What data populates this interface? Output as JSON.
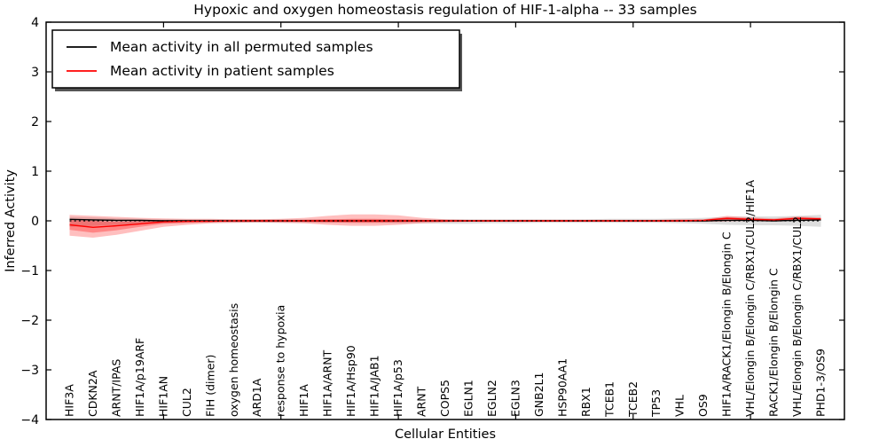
{
  "chart_data": {
    "type": "line",
    "title": "Hypoxic and oxygen homeostasis regulation of HIF-1-alpha -- 33 samples",
    "xlabel": "Cellular Entities",
    "ylabel": "Inferred Activity",
    "xlim": [
      0,
      34
    ],
    "ylim": [
      -4,
      4
    ],
    "xticks_unlabeled": [
      5,
      10,
      15,
      20,
      25,
      30
    ],
    "yticks": [
      4,
      3,
      2,
      1,
      0,
      -1,
      -2,
      -3,
      -4
    ],
    "grid": false,
    "tick_direction": "in",
    "legend_position": "upper left",
    "categories": [
      "HIF3A",
      "CDKN2A",
      "ARNT/IPAS",
      "HIF1A/p19ARF",
      "HIF1AN",
      "CUL2",
      "FIH (dimer)",
      "oxygen homeostasis",
      "ARD1A",
      "response to hypoxia",
      "HIF1A",
      "HIF1A/ARNT",
      "HIF1A/Hsp90",
      "HIF1A/JAB1",
      "HIF1A/p53",
      "ARNT",
      "COPS5",
      "EGLN1",
      "EGLN2",
      "EGLN3",
      "GNB2L1",
      "HSP90AA1",
      "RBX1",
      "TCEB1",
      "TCEB2",
      "TP53",
      "VHL",
      "OS9",
      "HIF1A/RACK1/Elongin B/Elongin C",
      "VHL/Elongin B/Elongin C/RBX1/CUL2/HIF1A",
      "RACK1/Elongin B/Elongin C",
      "VHL/Elongin B/Elongin C/RBX1/CUL2",
      "PHD1-3/OS9"
    ],
    "series": [
      {
        "id": "mean-permuted-line",
        "name": "Mean activity in all permuted samples",
        "color": "#000000",
        "values": [
          0.03,
          0.02,
          0.01,
          0.01,
          0,
          0,
          0,
          0,
          0,
          0,
          0,
          0,
          0,
          0,
          0,
          0,
          0,
          0,
          0,
          0,
          0,
          0,
          0,
          0,
          0,
          0,
          0,
          0,
          0.01,
          0.01,
          0,
          0.01,
          0.02
        ]
      },
      {
        "id": "mean-patient-line",
        "name": "Mean activity in patient samples",
        "color": "#ff0000",
        "values": [
          -0.08,
          -0.13,
          -0.1,
          -0.06,
          -0.02,
          -0.01,
          -0.01,
          0,
          0,
          0,
          0,
          0,
          0,
          0,
          0,
          0,
          0,
          0,
          0,
          0,
          0,
          0,
          0,
          0,
          0,
          0,
          0,
          0.01,
          0.05,
          0.03,
          0.02,
          0.05,
          0.04
        ]
      }
    ],
    "bands": [
      {
        "id": "permuted-std-band",
        "color": "rgba(0,0,0,0.13)",
        "upper": [
          0.08,
          0.07,
          0.05,
          0.04,
          0.03,
          0.03,
          0.03,
          0.03,
          0.03,
          0.03,
          0.03,
          0.03,
          0.03,
          0.03,
          0.03,
          0.03,
          0.03,
          0.03,
          0.03,
          0.03,
          0.03,
          0.03,
          0.03,
          0.04,
          0.04,
          0.04,
          0.05,
          0.06,
          0.08,
          0.09,
          0.09,
          0.1,
          0.12
        ],
        "lower": [
          -0.12,
          -0.1,
          -0.08,
          -0.06,
          -0.05,
          -0.04,
          -0.04,
          -0.04,
          -0.04,
          -0.04,
          -0.04,
          -0.04,
          -0.04,
          -0.04,
          -0.05,
          -0.05,
          -0.06,
          -0.06,
          -0.05,
          -0.05,
          -0.04,
          -0.04,
          -0.04,
          -0.04,
          -0.04,
          -0.04,
          -0.05,
          -0.06,
          -0.08,
          -0.09,
          -0.09,
          -0.1,
          -0.12
        ]
      },
      {
        "id": "patient-std-outer-band",
        "color": "rgba(255,0,0,0.25)",
        "upper": [
          0.12,
          0.1,
          0.08,
          0.06,
          0.05,
          0.04,
          0.04,
          0.03,
          0.03,
          0.04,
          0.06,
          0.1,
          0.13,
          0.13,
          0.11,
          0.06,
          0.03,
          0.02,
          0.02,
          0.02,
          0.02,
          0.02,
          0.02,
          0.02,
          0.02,
          0.02,
          0.03,
          0.03,
          0.1,
          0.07,
          0.05,
          0.09,
          0.07
        ],
        "lower": [
          -0.3,
          -0.34,
          -0.28,
          -0.2,
          -0.12,
          -0.08,
          -0.05,
          -0.04,
          -0.03,
          -0.04,
          -0.05,
          -0.08,
          -0.1,
          -0.1,
          -0.08,
          -0.05,
          -0.03,
          -0.02,
          -0.02,
          -0.02,
          -0.02,
          -0.02,
          -0.02,
          -0.02,
          -0.02,
          -0.02,
          -0.02,
          -0.02,
          -0.01,
          0,
          0,
          0,
          0.01
        ]
      },
      {
        "id": "patient-std-inner-band",
        "color": "rgba(255,0,0,0.3)",
        "upper": [
          0.02,
          0,
          -0.02,
          -0.01,
          0.01,
          0.01,
          0.01,
          0.01,
          0.01,
          0.01,
          0.02,
          0.03,
          0.04,
          0.04,
          0.03,
          0.02,
          0.01,
          0.01,
          0.01,
          0.01,
          0.01,
          0.01,
          0.01,
          0.01,
          0.01,
          0.01,
          0.01,
          0.02,
          0.07,
          0.05,
          0.03,
          0.07,
          0.05
        ],
        "lower": [
          -0.18,
          -0.24,
          -0.19,
          -0.12,
          -0.06,
          -0.04,
          -0.02,
          -0.01,
          -0.01,
          -0.01,
          -0.02,
          -0.03,
          -0.04,
          -0.04,
          -0.03,
          -0.02,
          -0.01,
          -0.01,
          -0.01,
          -0.01,
          -0.01,
          -0.01,
          -0.01,
          -0.01,
          -0.01,
          -0.01,
          -0.01,
          -0.01,
          0,
          0.01,
          0.01,
          0.02,
          0.02
        ]
      }
    ],
    "zero_line": {
      "style": "dotted",
      "color": "#000000",
      "value": 0
    }
  }
}
